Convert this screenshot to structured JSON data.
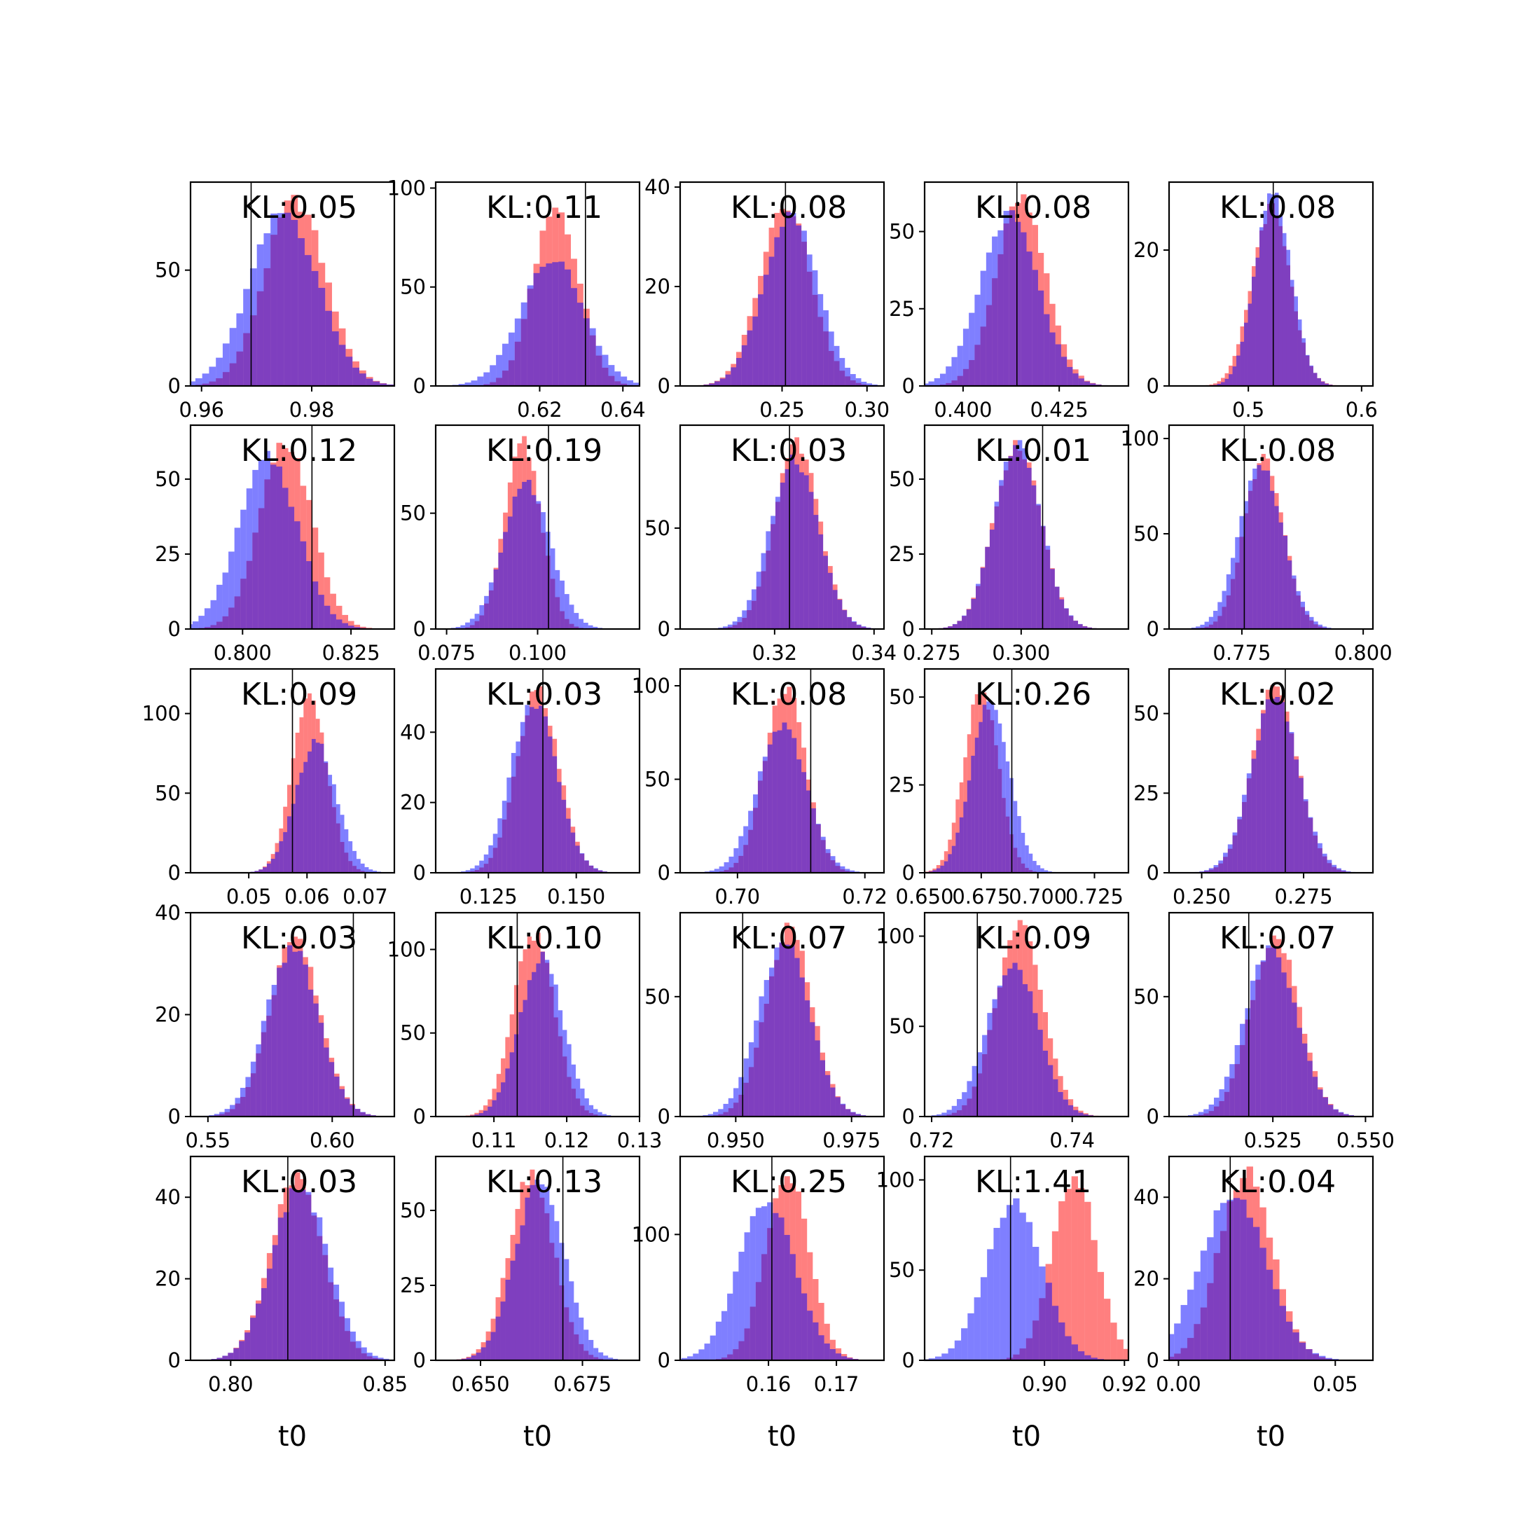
{
  "figure": {
    "colors": {
      "red": "#ff0000",
      "blue": "#0000ff",
      "line": "#000000"
    },
    "x_axis_label": "t0"
  },
  "chart_data": [
    {
      "type": "bar",
      "kl": "KL:0.05",
      "ylim": [
        0,
        88
      ],
      "yticks": [
        0,
        50
      ],
      "xlim": [
        0.958,
        0.995
      ],
      "xticks": [
        {
          "v": 0.96,
          "t": "0.96"
        },
        {
          "v": 0.98,
          "t": "0.98"
        }
      ],
      "mu": 0.977,
      "sd": 0.0055,
      "mu2": 0.975,
      "sd2": 0.0062,
      "pk": 80,
      "pk2": 75,
      "vline": 0.969
    },
    {
      "type": "bar",
      "kl": "KL:0.11",
      "ylim": [
        0,
        103
      ],
      "yticks": [
        0,
        50,
        100
      ],
      "xlim": [
        0.595,
        0.644
      ],
      "xticks": [
        {
          "v": 0.62,
          "t": "0.62"
        },
        {
          "v": 0.64,
          "t": "0.64"
        }
      ],
      "mu": 0.624,
      "sd": 0.0055,
      "mu2": 0.623,
      "sd2": 0.0075,
      "pk": 90,
      "pk2": 65,
      "vline": 0.631
    },
    {
      "type": "bar",
      "kl": "KL:0.08",
      "ylim": [
        0,
        41
      ],
      "yticks": [
        0,
        20,
        40
      ],
      "xlim": [
        0.19,
        0.31
      ],
      "xticks": [
        {
          "v": 0.25,
          "t": "0.25"
        },
        {
          "v": 0.3,
          "t": "0.30"
        }
      ],
      "mu": 0.252,
      "sd": 0.015,
      "mu2": 0.255,
      "sd2": 0.016,
      "pk": 37,
      "pk2": 34,
      "vline": 0.252
    },
    {
      "type": "bar",
      "kl": "KL:0.08",
      "ylim": [
        0,
        66
      ],
      "yticks": [
        0,
        25,
        50
      ],
      "xlim": [
        0.39,
        0.443
      ],
      "xticks": [
        {
          "v": 0.4,
          "t": "0.400"
        },
        {
          "v": 0.425,
          "t": "0.425"
        }
      ],
      "mu": 0.415,
      "sd": 0.0065,
      "mu2": 0.412,
      "sd2": 0.0075,
      "pk": 60,
      "pk2": 55,
      "vline": 0.414
    },
    {
      "type": "bar",
      "kl": "KL:0.08",
      "ylim": [
        0,
        30
      ],
      "yticks": [
        0,
        20
      ],
      "xlim": [
        0.43,
        0.61
      ],
      "xticks": [
        {
          "v": 0.5,
          "t": "0.5"
        },
        {
          "v": 0.6,
          "t": "0.6"
        }
      ],
      "mu": 0.52,
      "sd": 0.017,
      "mu2": 0.522,
      "sd2": 0.016,
      "pk": 26,
      "pk2": 28,
      "vline": 0.522
    },
    {
      "type": "bar",
      "kl": "KL:0.12",
      "ylim": [
        0,
        68
      ],
      "yticks": [
        0,
        25,
        50
      ],
      "xlim": [
        0.788,
        0.835
      ],
      "xticks": [
        {
          "v": 0.8,
          "t": "0.800"
        },
        {
          "v": 0.825,
          "t": "0.825"
        }
      ],
      "mu": 0.81,
      "sd": 0.006,
      "mu2": 0.806,
      "sd2": 0.0068,
      "pk": 62,
      "pk2": 57,
      "vline": 0.816
    },
    {
      "type": "bar",
      "kl": "KL:0.19",
      "ylim": [
        0,
        88
      ],
      "yticks": [
        0,
        50
      ],
      "xlim": [
        0.072,
        0.128
      ],
      "xticks": [
        {
          "v": 0.075,
          "t": "0.075"
        },
        {
          "v": 0.1,
          "t": "0.100"
        }
      ],
      "mu": 0.096,
      "sd": 0.005,
      "mu2": 0.097,
      "sd2": 0.0065,
      "pk": 80,
      "pk2": 62,
      "vline": 0.103
    },
    {
      "type": "bar",
      "kl": "KL:0.03",
      "ylim": [
        0,
        101
      ],
      "yticks": [
        0,
        50
      ],
      "xlim": [
        0.301,
        0.342
      ],
      "xticks": [
        {
          "v": 0.32,
          "t": "0.32"
        },
        {
          "v": 0.34,
          "t": "0.34"
        }
      ],
      "mu": 0.3245,
      "sd": 0.0045,
      "mu2": 0.324,
      "sd2": 0.0048,
      "pk": 91,
      "pk2": 85,
      "vline": 0.323
    },
    {
      "type": "bar",
      "kl": "KL:0.01",
      "ylim": [
        0,
        68
      ],
      "yticks": [
        0,
        25,
        50
      ],
      "xlim": [
        0.273,
        0.33
      ],
      "xticks": [
        {
          "v": 0.275,
          "t": "0.275"
        },
        {
          "v": 0.3,
          "t": "0.300"
        }
      ],
      "mu": 0.299,
      "sd": 0.0065,
      "mu2": 0.299,
      "sd2": 0.0065,
      "pk": 62,
      "pk2": 62,
      "vline": 0.306
    },
    {
      "type": "bar",
      "kl": "KL:0.08",
      "ylim": [
        0,
        107
      ],
      "yticks": [
        0,
        50,
        100
      ],
      "xlim": [
        0.76,
        0.802
      ],
      "xticks": [
        {
          "v": 0.775,
          "t": "0.775"
        },
        {
          "v": 0.8,
          "t": "0.800"
        }
      ],
      "mu": 0.7795,
      "sd": 0.004,
      "mu2": 0.779,
      "sd2": 0.0045,
      "pk": 90,
      "pk2": 86,
      "vline": 0.7755
    },
    {
      "type": "bar",
      "kl": "KL:0.09",
      "ylim": [
        0,
        128
      ],
      "yticks": [
        0,
        50,
        100
      ],
      "xlim": [
        0.04,
        0.075
      ],
      "xticks": [
        {
          "v": 0.05,
          "t": "0.05"
        },
        {
          "v": 0.06,
          "t": "0.06"
        },
        {
          "v": 0.07,
          "t": "0.07"
        }
      ],
      "mu": 0.0605,
      "sd": 0.003,
      "mu2": 0.0615,
      "sd2": 0.0035,
      "pk": 110,
      "pk2": 82,
      "vline": 0.0575
    },
    {
      "type": "bar",
      "kl": "KL:0.03",
      "ylim": [
        0,
        58
      ],
      "yticks": [
        0,
        20,
        40
      ],
      "xlim": [
        0.11,
        0.168
      ],
      "xticks": [
        {
          "v": 0.125,
          "t": "0.125"
        },
        {
          "v": 0.15,
          "t": "0.150"
        }
      ],
      "mu": 0.139,
      "sd": 0.006,
      "mu2": 0.138,
      "sd2": 0.0065,
      "pk": 52,
      "pk2": 49,
      "vline": 0.1405
    },
    {
      "type": "bar",
      "kl": "KL:0.08",
      "ylim": [
        0,
        109
      ],
      "yticks": [
        0,
        50,
        100
      ],
      "xlim": [
        0.691,
        0.723
      ],
      "xticks": [
        {
          "v": 0.7,
          "t": "0.70"
        },
        {
          "v": 0.72,
          "t": "0.72"
        }
      ],
      "mu": 0.7075,
      "sd": 0.0032,
      "mu2": 0.707,
      "sd2": 0.0038,
      "pk": 100,
      "pk2": 80,
      "vline": 0.7115
    },
    {
      "type": "bar",
      "kl": "KL:0.26",
      "ylim": [
        0,
        58
      ],
      "yticks": [
        0,
        25,
        50
      ],
      "xlim": [
        0.65,
        0.74
      ],
      "xticks": [
        {
          "v": 0.65,
          "t": "0.650"
        },
        {
          "v": 0.675,
          "t": "0.675"
        },
        {
          "v": 0.7,
          "t": "0.700"
        },
        {
          "v": 0.725,
          "t": "0.725"
        }
      ],
      "mu": 0.675,
      "sd": 0.0075,
      "mu2": 0.679,
      "sd2": 0.0085,
      "pk": 53,
      "pk2": 48,
      "vline": 0.6885
    },
    {
      "type": "bar",
      "kl": "KL:0.02",
      "ylim": [
        0,
        64
      ],
      "yticks": [
        0,
        25,
        50
      ],
      "xlim": [
        0.242,
        0.292
      ],
      "xticks": [
        {
          "v": 0.25,
          "t": "0.250"
        },
        {
          "v": 0.275,
          "t": "0.275"
        }
      ],
      "mu": 0.268,
      "sd": 0.0055,
      "mu2": 0.268,
      "sd2": 0.0058,
      "pk": 58,
      "pk2": 55,
      "vline": 0.2705
    },
    {
      "type": "bar",
      "kl": "KL:0.03",
      "ylim": [
        0,
        40
      ],
      "yticks": [
        0,
        20,
        40
      ],
      "xlim": [
        0.543,
        0.625
      ],
      "xticks": [
        {
          "v": 0.55,
          "t": "0.55"
        },
        {
          "v": 0.6,
          "t": "0.60"
        }
      ],
      "mu": 0.585,
      "sd": 0.01,
      "mu2": 0.584,
      "sd2": 0.0105,
      "pk": 35,
      "pk2": 33,
      "vline": 0.6085
    },
    {
      "type": "bar",
      "kl": "KL:0.10",
      "ylim": [
        0,
        122
      ],
      "yticks": [
        0,
        50,
        100
      ],
      "xlim": [
        0.102,
        0.13
      ],
      "xticks": [
        {
          "v": 0.11,
          "t": "0.11"
        },
        {
          "v": 0.12,
          "t": "0.12"
        },
        {
          "v": 0.13,
          "t": "0.13"
        }
      ],
      "mu": 0.1155,
      "sd": 0.0028,
      "mu2": 0.1165,
      "sd2": 0.003,
      "pk": 110,
      "pk2": 95,
      "vline": 0.1132
    },
    {
      "type": "bar",
      "kl": "KL:0.07",
      "ylim": [
        0,
        85
      ],
      "yticks": [
        0,
        50
      ],
      "xlim": [
        0.938,
        0.982
      ],
      "xticks": [
        {
          "v": 0.95,
          "t": "0.950"
        },
        {
          "v": 0.975,
          "t": "0.975"
        }
      ],
      "mu": 0.9615,
      "sd": 0.005,
      "mu2": 0.9605,
      "sd2": 0.0055,
      "pk": 78,
      "pk2": 72,
      "vline": 0.9515
    },
    {
      "type": "bar",
      "kl": "KL:0.09",
      "ylim": [
        0,
        113
      ],
      "yticks": [
        0,
        50,
        100
      ],
      "xlim": [
        0.719,
        0.748
      ],
      "xticks": [
        {
          "v": 0.72,
          "t": "0.72"
        },
        {
          "v": 0.74,
          "t": "0.74"
        }
      ],
      "mu": 0.7325,
      "sd": 0.0033,
      "mu2": 0.7315,
      "sd2": 0.0036,
      "pk": 105,
      "pk2": 85,
      "vline": 0.7265
    },
    {
      "type": "bar",
      "kl": "KL:0.07",
      "ylim": [
        0,
        85
      ],
      "yticks": [
        0,
        50
      ],
      "xlim": [
        0.497,
        0.552
      ],
      "xticks": [
        {
          "v": 0.525,
          "t": "0.525"
        },
        {
          "v": 0.55,
          "t": "0.550"
        }
      ],
      "mu": 0.5255,
      "sd": 0.0065,
      "mu2": 0.5245,
      "sd2": 0.007,
      "pk": 75,
      "pk2": 70,
      "vline": 0.5185
    },
    {
      "type": "bar",
      "kl": "KL:0.03",
      "ylim": [
        0,
        50
      ],
      "yticks": [
        0,
        20,
        40
      ],
      "xlim": [
        0.787,
        0.853
      ],
      "xticks": [
        {
          "v": 0.8,
          "t": "0.80"
        },
        {
          "v": 0.85,
          "t": "0.85"
        }
      ],
      "mu": 0.8215,
      "sd": 0.0085,
      "mu2": 0.8225,
      "sd2": 0.009,
      "pk": 45,
      "pk2": 43,
      "vline": 0.8185
    },
    {
      "type": "bar",
      "kl": "KL:0.13",
      "ylim": [
        0,
        68
      ],
      "yticks": [
        0,
        25,
        50
      ],
      "xlim": [
        0.639,
        0.689
      ],
      "xticks": [
        {
          "v": 0.65,
          "t": "0.650"
        },
        {
          "v": 0.675,
          "t": "0.675"
        }
      ],
      "mu": 0.6625,
      "sd": 0.0055,
      "mu2": 0.6645,
      "sd2": 0.006,
      "pk": 62,
      "pk2": 60,
      "vline": 0.6702
    },
    {
      "type": "bar",
      "kl": "KL:0.25",
      "ylim": [
        0,
        162
      ],
      "yticks": [
        0,
        100
      ],
      "xlim": [
        0.147,
        0.177
      ],
      "xticks": [
        {
          "v": 0.16,
          "t": "0.16"
        },
        {
          "v": 0.17,
          "t": "0.17"
        }
      ],
      "mu": 0.1628,
      "sd": 0.0032,
      "mu2": 0.1598,
      "sd2": 0.0042,
      "pk": 148,
      "pk2": 125,
      "vline": 0.1605
    },
    {
      "type": "bar",
      "kl": "KL:1.41",
      "ylim": [
        0,
        113
      ],
      "yticks": [
        0,
        50,
        100
      ],
      "xlim": [
        0.87,
        0.921
      ],
      "xticks": [
        {
          "v": 0.9,
          "t": "0.90"
        },
        {
          "v": 0.92,
          "t": "0.92"
        }
      ],
      "mu": 0.9075,
      "sd": 0.0055,
      "mu2": 0.8925,
      "sd2": 0.007,
      "pk": 103,
      "pk2": 87,
      "vline": 0.8915
    },
    {
      "type": "bar",
      "kl": "KL:0.04",
      "ylim": [
        0,
        50
      ],
      "yticks": [
        0,
        20,
        40
      ],
      "xlim": [
        -0.003,
        0.062
      ],
      "xticks": [
        {
          "v": 0.0,
          "t": "0.00"
        },
        {
          "v": 0.05,
          "t": "0.05"
        }
      ],
      "mu": 0.0215,
      "sd": 0.0085,
      "mu2": 0.0175,
      "sd2": 0.0105,
      "pk": 46,
      "pk2": 40,
      "vline": 0.0165
    }
  ]
}
